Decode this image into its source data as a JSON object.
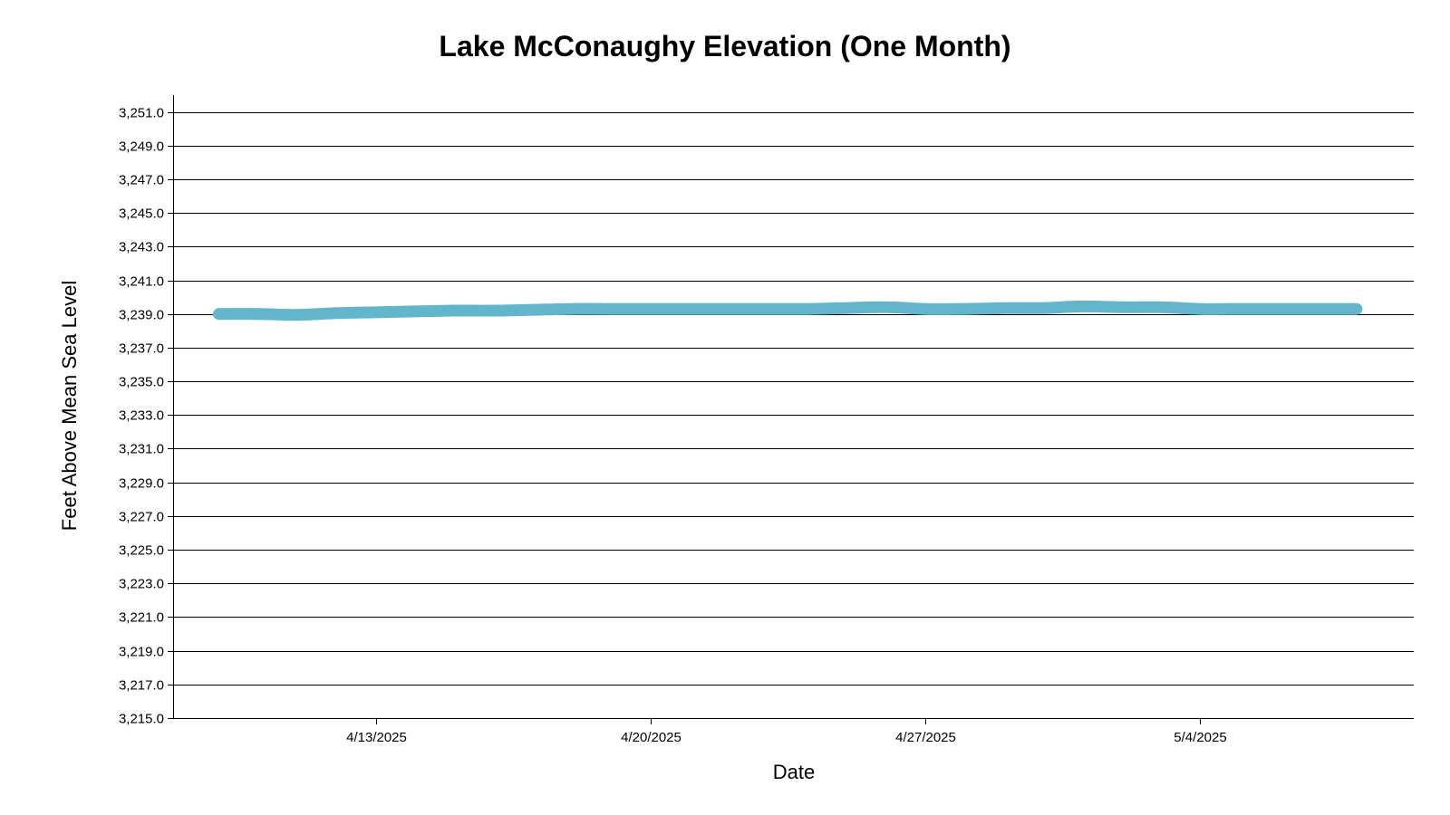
{
  "chart_data": {
    "type": "line",
    "title": "Lake McConaughy Elevation (One Month)",
    "xlabel": "Date",
    "ylabel": "Feet Above Mean Sea Level",
    "ylim": [
      3215.0,
      3252.0
    ],
    "yticks": [
      3215.0,
      3217.0,
      3219.0,
      3221.0,
      3223.0,
      3225.0,
      3227.0,
      3229.0,
      3231.0,
      3233.0,
      3235.0,
      3237.0,
      3239.0,
      3241.0,
      3243.0,
      3245.0,
      3247.0,
      3249.0,
      3251.0
    ],
    "ytick_labels": [
      "3,215.0",
      "3,217.0",
      "3,219.0",
      "3,221.0",
      "3,223.0",
      "3,225.0",
      "3,227.0",
      "3,229.0",
      "3,231.0",
      "3,233.0",
      "3,235.0",
      "3,237.0",
      "3,239.0",
      "3,241.0",
      "3,243.0",
      "3,245.0",
      "3,247.0",
      "3,249.0",
      "3,251.0"
    ],
    "xlim": [
      "2025-04-07T20:00",
      "2025-05-09T11:00"
    ],
    "xticks": [
      "2025-04-13",
      "2025-04-20",
      "2025-04-27",
      "2025-05-04"
    ],
    "xtick_labels": [
      "4/13/2025",
      "4/20/2025",
      "4/27/2025",
      "5/4/2025"
    ],
    "grid": "horizontal",
    "series": [
      {
        "color": "#62B5CB",
        "x": [
          "2025-04-09",
          "2025-04-10",
          "2025-04-11",
          "2025-04-12",
          "2025-04-13",
          "2025-04-14",
          "2025-04-15",
          "2025-04-16",
          "2025-04-17",
          "2025-04-18",
          "2025-04-19",
          "2025-04-20",
          "2025-04-21",
          "2025-04-22",
          "2025-04-23",
          "2025-04-24",
          "2025-04-25",
          "2025-04-26",
          "2025-04-27",
          "2025-04-28",
          "2025-04-29",
          "2025-04-30",
          "2025-05-01",
          "2025-05-02",
          "2025-05-03",
          "2025-05-04",
          "2025-05-05",
          "2025-05-06",
          "2025-05-07",
          "2025-05-08"
        ],
        "values": [
          3239.0,
          3239.0,
          3238.95,
          3239.05,
          3239.1,
          3239.15,
          3239.2,
          3239.2,
          3239.25,
          3239.3,
          3239.3,
          3239.3,
          3239.3,
          3239.3,
          3239.3,
          3239.3,
          3239.35,
          3239.4,
          3239.3,
          3239.3,
          3239.35,
          3239.35,
          3239.45,
          3239.4,
          3239.4,
          3239.3,
          3239.3,
          3239.3,
          3239.3,
          3239.3
        ]
      }
    ]
  }
}
